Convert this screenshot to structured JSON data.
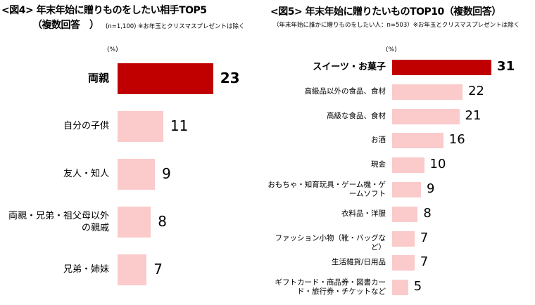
{
  "colors": {
    "highlight": "#c00000",
    "normal": "#fbcaca"
  },
  "chart_data": [
    {
      "type": "bar",
      "orientation": "horizontal",
      "title": "<図4> 年末年始に贈りものをしたい相手TOP5",
      "title2": "（複数回答　）",
      "note": "(n=1,100)  ※お年玉とクリスマスプレゼントは除く",
      "unit": "(%)",
      "categories": [
        "両親",
        "自分の子供",
        "友人・知人",
        "両親・兄弟・祖父母以外の親戚",
        "兄弟・姉妹"
      ],
      "values": [
        23,
        11,
        9,
        8,
        7
      ]
    },
    {
      "type": "bar",
      "orientation": "horizontal",
      "title": "<図5> 年末年始に贈りたいものTOP10（複数回答）",
      "note": "（年末年始に誰かに贈りものをしたい人：n=503）※お年玉とクリスマスプレゼントは除く",
      "unit": "(%)",
      "categories": [
        "スイーツ・お菓子",
        "高級品以外の食品、食材",
        "高級な食品、食材",
        "お酒",
        "現金",
        "おもちゃ・知育玩具・ゲーム機・ゲームソフト",
        "衣料品・洋服",
        "ファッション小物（靴・バッグなど）",
        "生活雑貨/日用品",
        "ギフトカード・商品券・図書カード・旅行券・チケットなど"
      ],
      "values": [
        31,
        22,
        21,
        16,
        10,
        9,
        8,
        7,
        7,
        5
      ]
    }
  ]
}
